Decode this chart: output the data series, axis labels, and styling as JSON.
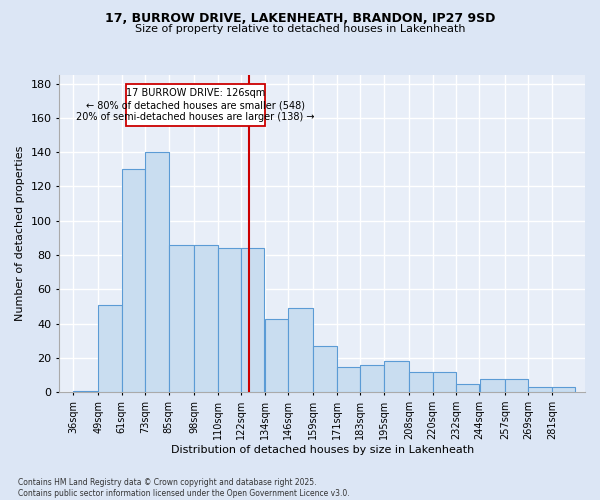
{
  "title": "17, BURROW DRIVE, LAKENHEATH, BRANDON, IP27 9SD",
  "subtitle": "Size of property relative to detached houses in Lakenheath",
  "xlabel": "Distribution of detached houses by size in Lakenheath",
  "ylabel": "Number of detached properties",
  "categories": [
    "36sqm",
    "49sqm",
    "61sqm",
    "73sqm",
    "85sqm",
    "98sqm",
    "110sqm",
    "122sqm",
    "134sqm",
    "146sqm",
    "159sqm",
    "171sqm",
    "183sqm",
    "195sqm",
    "208sqm",
    "220sqm",
    "232sqm",
    "244sqm",
    "257sqm",
    "269sqm",
    "281sqm"
  ],
  "bin_edges": [
    36,
    49,
    61,
    73,
    85,
    98,
    110,
    122,
    134,
    146,
    159,
    171,
    183,
    195,
    208,
    220,
    232,
    244,
    257,
    269,
    281,
    293
  ],
  "bar_values": [
    1,
    51,
    130,
    140,
    86,
    86,
    84,
    84,
    43,
    49,
    27,
    15,
    16,
    18,
    12,
    12,
    5,
    8,
    8,
    3,
    3
  ],
  "bar_color": "#c9ddf0",
  "bar_edge_color": "#5b9bd5",
  "property_label": "17 BURROW DRIVE: 126sqm",
  "annotation_line1": "← 80% of detached houses are smaller (548)",
  "annotation_line2": "20% of semi-detached houses are larger (138) →",
  "vline_color": "#cc0000",
  "vline_x": 126,
  "ylim": [
    0,
    185
  ],
  "yticks": [
    0,
    20,
    40,
    60,
    80,
    100,
    120,
    140,
    160,
    180
  ],
  "background_color": "#dce6f5",
  "plot_bg_color": "#e8eef8",
  "grid_color": "#ffffff",
  "title_fontsize": 9,
  "subtitle_fontsize": 8,
  "footer_line1": "Contains HM Land Registry data © Crown copyright and database right 2025.",
  "footer_line2": "Contains public sector information licensed under the Open Government Licence v3.0."
}
